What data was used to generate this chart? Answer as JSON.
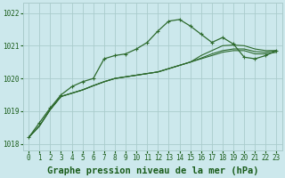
{
  "title": "Graphe pression niveau de la mer (hPa)",
  "bg_color": "#cce8ec",
  "grid_color": "#aacccc",
  "line_color": "#2d6a2d",
  "marker_color": "#2d6a2d",
  "text_color": "#1a5c1a",
  "ylim": [
    1017.8,
    1022.3
  ],
  "xlim": [
    -0.5,
    23.5
  ],
  "yticks": [
    1018,
    1019,
    1020,
    1021,
    1022
  ],
  "xticks": [
    0,
    1,
    2,
    3,
    4,
    5,
    6,
    7,
    8,
    9,
    10,
    11,
    12,
    13,
    14,
    15,
    16,
    17,
    18,
    19,
    20,
    21,
    22,
    23
  ],
  "series_with_markers": [
    1018.2,
    1018.65,
    1019.1,
    1019.5,
    1019.75,
    1019.9,
    1020.0,
    1020.6,
    1020.7,
    1020.75,
    1020.9,
    1021.1,
    1021.45,
    1021.75,
    1021.8,
    1021.6,
    1021.35,
    1021.1,
    1021.25,
    1021.05,
    1020.65,
    1020.6,
    1020.7,
    1020.85
  ],
  "series_plain": [
    [
      1018.2,
      1018.55,
      1019.05,
      1019.45,
      1019.55,
      1019.65,
      1019.78,
      1019.9,
      1020.0,
      1020.05,
      1020.1,
      1020.15,
      1020.2,
      1020.3,
      1020.4,
      1020.5,
      1020.6,
      1020.7,
      1020.8,
      1020.85,
      1020.85,
      1020.75,
      1020.75,
      1020.8
    ],
    [
      1018.2,
      1018.55,
      1019.05,
      1019.45,
      1019.55,
      1019.65,
      1019.78,
      1019.9,
      1020.0,
      1020.05,
      1020.1,
      1020.15,
      1020.2,
      1020.3,
      1020.4,
      1020.5,
      1020.62,
      1020.75,
      1020.85,
      1020.9,
      1020.9,
      1020.82,
      1020.8,
      1020.85
    ],
    [
      1018.2,
      1018.55,
      1019.05,
      1019.45,
      1019.55,
      1019.65,
      1019.78,
      1019.9,
      1020.0,
      1020.05,
      1020.1,
      1020.15,
      1020.2,
      1020.3,
      1020.4,
      1020.5,
      1020.7,
      1020.85,
      1021.0,
      1021.02,
      1021.0,
      1020.9,
      1020.85,
      1020.85
    ]
  ],
  "title_fontsize": 7.5,
  "tick_fontsize": 5.5
}
